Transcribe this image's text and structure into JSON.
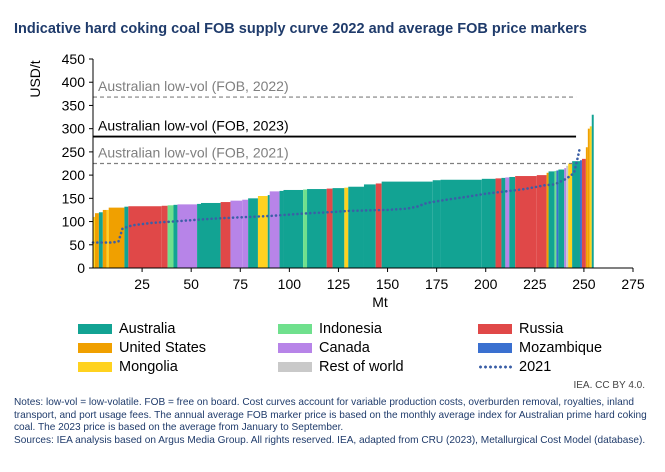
{
  "title": "Indicative hard coking coal FOB supply curve 2022 and average FOB price markers",
  "chart_data": {
    "type": "bar",
    "subtype": "supply-curve",
    "xlabel": "Mt",
    "ylabel": "USD/t",
    "xlim": [
      0,
      275
    ],
    "ylim": [
      0,
      450
    ],
    "xticks": [
      25,
      50,
      75,
      100,
      125,
      150,
      175,
      200,
      225,
      250,
      275
    ],
    "yticks": [
      0,
      50,
      100,
      150,
      200,
      250,
      300,
      350,
      400,
      450
    ],
    "grid": false,
    "colors": {
      "Australia": "#12a393",
      "Indonesia": "#6fe08d",
      "Russia": "#e04848",
      "United States": "#f0a000",
      "Canada": "#b784e8",
      "Mozambique": "#3a70d0",
      "Mongolia": "#ffd21f",
      "Rest of world": "#c9c9c9"
    },
    "legend": [
      {
        "label": "Australia",
        "type": "box",
        "color": "#12a393"
      },
      {
        "label": "Indonesia",
        "type": "box",
        "color": "#6fe08d"
      },
      {
        "label": "Russia",
        "type": "box",
        "color": "#e04848"
      },
      {
        "label": "United States",
        "type": "box",
        "color": "#f0a000"
      },
      {
        "label": "Canada",
        "type": "box",
        "color": "#b784e8"
      },
      {
        "label": "Mozambique",
        "type": "box",
        "color": "#3a70d0"
      },
      {
        "label": "Mongolia",
        "type": "box",
        "color": "#ffd21f"
      },
      {
        "label": "Rest of world",
        "type": "box",
        "color": "#c9c9c9"
      },
      {
        "label": "2021",
        "type": "dotted-line",
        "color": "#3b5fa6"
      }
    ],
    "price_markers": [
      {
        "label": "Australian low-vol (FOB, 2022)",
        "value": 368,
        "style": "dashed",
        "color": "#7f7f7f"
      },
      {
        "label": "Australian low-vol (FOB, 2023)",
        "value": 283,
        "style": "solid",
        "color": "#000000"
      },
      {
        "label": "Australian low-vol (FOB, 2021)",
        "value": 225,
        "style": "dashed",
        "color": "#7f7f7f"
      }
    ],
    "segments": [
      {
        "country": "Mongolia",
        "width": 1,
        "cost": 110
      },
      {
        "country": "United States",
        "width": 2,
        "cost": 118
      },
      {
        "country": "Australia",
        "width": 2,
        "cost": 120
      },
      {
        "country": "United States",
        "width": 2,
        "cost": 125
      },
      {
        "country": "Mongolia",
        "width": 1,
        "cost": 125
      },
      {
        "country": "United States",
        "width": 8,
        "cost": 130
      },
      {
        "country": "Australia",
        "width": 2,
        "cost": 132
      },
      {
        "country": "Russia",
        "width": 17,
        "cost": 133
      },
      {
        "country": "Russia",
        "width": 3,
        "cost": 134
      },
      {
        "country": "Indonesia",
        "width": 3,
        "cost": 135
      },
      {
        "country": "Australia",
        "width": 2,
        "cost": 136
      },
      {
        "country": "Canada",
        "width": 10,
        "cost": 137
      },
      {
        "country": "Australia",
        "width": 2,
        "cost": 138
      },
      {
        "country": "Australia",
        "width": 10,
        "cost": 140
      },
      {
        "country": "Russia",
        "width": 5,
        "cost": 142
      },
      {
        "country": "Canada",
        "width": 6,
        "cost": 145
      },
      {
        "country": "Canada",
        "width": 3,
        "cost": 147
      },
      {
        "country": "Australia",
        "width": 5,
        "cost": 150
      },
      {
        "country": "Mongolia",
        "width": 5,
        "cost": 155
      },
      {
        "country": "Australia",
        "width": 1,
        "cost": 157
      },
      {
        "country": "Canada",
        "width": 5,
        "cost": 165
      },
      {
        "country": "Australia",
        "width": 2,
        "cost": 166
      },
      {
        "country": "Australia",
        "width": 10,
        "cost": 168
      },
      {
        "country": "Indonesia",
        "width": 2,
        "cost": 169
      },
      {
        "country": "Australia",
        "width": 10,
        "cost": 170
      },
      {
        "country": "Russia",
        "width": 3,
        "cost": 171
      },
      {
        "country": "Australia",
        "width": 6,
        "cost": 172
      },
      {
        "country": "Mongolia",
        "width": 2,
        "cost": 173
      },
      {
        "country": "Australia",
        "width": 8,
        "cost": 175
      },
      {
        "country": "Australia",
        "width": 6,
        "cost": 180
      },
      {
        "country": "Russia",
        "width": 3,
        "cost": 182
      },
      {
        "country": "Australia",
        "width": 26,
        "cost": 186
      },
      {
        "country": "Australia",
        "width": 4,
        "cost": 189
      },
      {
        "country": "Australia",
        "width": 21,
        "cost": 190
      },
      {
        "country": "Australia",
        "width": 7,
        "cost": 192
      },
      {
        "country": "Russia",
        "width": 3,
        "cost": 193
      },
      {
        "country": "Australia",
        "width": 2,
        "cost": 194
      },
      {
        "country": "Canada",
        "width": 2,
        "cost": 195
      },
      {
        "country": "Australia",
        "width": 3,
        "cost": 196
      },
      {
        "country": "Russia",
        "width": 11,
        "cost": 198
      },
      {
        "country": "Russia",
        "width": 5,
        "cost": 200
      },
      {
        "country": "United States",
        "width": 1,
        "cost": 205
      },
      {
        "country": "Australia",
        "width": 3,
        "cost": 208
      },
      {
        "country": "Indonesia",
        "width": 1,
        "cost": 209
      },
      {
        "country": "Mozambique",
        "width": 1,
        "cost": 210
      },
      {
        "country": "Australia",
        "width": 3,
        "cost": 212
      },
      {
        "country": "Canada",
        "width": 1,
        "cost": 215
      },
      {
        "country": "Rest of world",
        "width": 1,
        "cost": 220
      },
      {
        "country": "Mongolia",
        "width": 2,
        "cost": 225
      },
      {
        "country": "Australia",
        "width": 4,
        "cost": 230
      },
      {
        "country": "Mozambique",
        "width": 1,
        "cost": 232
      },
      {
        "country": "Russia",
        "width": 2,
        "cost": 235
      },
      {
        "country": "United States",
        "width": 1,
        "cost": 260
      },
      {
        "country": "United States",
        "width": 1,
        "cost": 300
      },
      {
        "country": "Mongolia",
        "width": 1,
        "cost": 305
      },
      {
        "country": "Australia",
        "width": 1,
        "cost": 330
      }
    ],
    "series_2021": {
      "name": "2021",
      "x": [
        0,
        10,
        13,
        15,
        20,
        30,
        40,
        50,
        60,
        70,
        80,
        90,
        100,
        110,
        120,
        130,
        140,
        150,
        160,
        165,
        170,
        180,
        190,
        200,
        210,
        220,
        225,
        230,
        235,
        240,
        243,
        245,
        247,
        248
      ],
      "y": [
        55,
        55,
        57,
        85,
        92,
        97,
        100,
        103,
        106,
        108,
        110,
        112,
        115,
        118,
        120,
        123,
        124,
        125,
        128,
        132,
        140,
        147,
        153,
        160,
        165,
        170,
        174,
        178,
        180,
        190,
        198,
        205,
        240,
        260
      ]
    }
  },
  "attribution": "IEA. CC BY 4.0.",
  "notes": "Notes: low-vol = low-volatile. FOB = free on board. Cost curves account for variable production costs, overburden removal, royalties, inland transport, and port usage fees. The annual average FOB marker price is based on the monthly average index for Australian prime hard coking coal. The 2023 price is based on the average from January to September.",
  "sources": "Sources: IEA analysis based on Argus Media Group. All rights reserved. IEA, adapted from CRU (2023), Metallurgical Cost Model (database)."
}
